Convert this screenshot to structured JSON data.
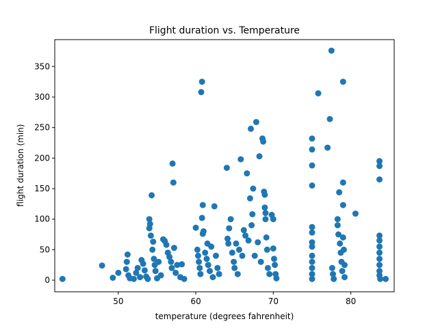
{
  "chart_data": {
    "type": "scatter",
    "title": "Flight duration vs. Temperature",
    "xlabel": "temperature (degrees fahrenheit)",
    "ylabel": "flight duration (min)",
    "xlim": [
      41.8,
      85.6
    ],
    "ylim": [
      -19,
      394
    ],
    "xticks": [
      50,
      60,
      70,
      80
    ],
    "yticks": [
      0,
      50,
      100,
      150,
      200,
      250,
      300,
      350
    ],
    "grid": false,
    "marker_color": "#1f77b4",
    "points": [
      [
        42.8,
        2
      ],
      [
        47.9,
        24
      ],
      [
        49.3,
        4
      ],
      [
        50.0,
        12
      ],
      [
        51.2,
        42
      ],
      [
        51.1,
        30
      ],
      [
        51.0,
        18
      ],
      [
        51.3,
        8
      ],
      [
        51.5,
        3
      ],
      [
        52.0,
        2
      ],
      [
        52.3,
        12
      ],
      [
        52.5,
        20
      ],
      [
        52.8,
        5
      ],
      [
        53.0,
        33
      ],
      [
        53.2,
        27
      ],
      [
        53.4,
        16
      ],
      [
        53.6,
        6
      ],
      [
        53.8,
        2
      ],
      [
        54.0,
        100
      ],
      [
        54.1,
        92
      ],
      [
        54.0,
        85
      ],
      [
        54.2,
        73
      ],
      [
        54.3,
        139
      ],
      [
        54.4,
        50
      ],
      [
        54.5,
        63
      ],
      [
        54.6,
        35
      ],
      [
        54.7,
        25
      ],
      [
        54.8,
        15
      ],
      [
        55.0,
        3
      ],
      [
        55.2,
        30
      ],
      [
        55.5,
        8
      ],
      [
        55.8,
        67
      ],
      [
        56.0,
        64
      ],
      [
        56.2,
        58
      ],
      [
        56.4,
        45
      ],
      [
        56.6,
        38
      ],
      [
        56.8,
        30
      ],
      [
        56.9,
        20
      ],
      [
        57.0,
        191
      ],
      [
        57.1,
        160
      ],
      [
        57.2,
        53
      ],
      [
        57.4,
        12
      ],
      [
        57.6,
        25
      ],
      [
        58.0,
        5
      ],
      [
        58.2,
        26
      ],
      [
        58.5,
        2
      ],
      [
        60.0,
        86
      ],
      [
        60.2,
        50
      ],
      [
        60.3,
        40
      ],
      [
        60.4,
        30
      ],
      [
        60.5,
        20
      ],
      [
        60.6,
        10
      ],
      [
        60.7,
        308
      ],
      [
        60.8,
        325
      ],
      [
        60.9,
        123
      ],
      [
        60.8,
        102
      ],
      [
        60.9,
        76
      ],
      [
        61.0,
        80
      ],
      [
        61.2,
        45
      ],
      [
        61.4,
        35
      ],
      [
        61.5,
        60
      ],
      [
        61.6,
        25
      ],
      [
        61.8,
        15
      ],
      [
        62.0,
        55
      ],
      [
        62.2,
        5
      ],
      [
        62.4,
        121
      ],
      [
        62.6,
        40
      ],
      [
        62.8,
        20
      ],
      [
        63.0,
        10
      ],
      [
        64.0,
        184
      ],
      [
        64.1,
        68
      ],
      [
        64.2,
        60
      ],
      [
        64.3,
        85
      ],
      [
        64.5,
        100
      ],
      [
        64.7,
        45
      ],
      [
        64.9,
        30
      ],
      [
        65.0,
        20
      ],
      [
        65.2,
        60
      ],
      [
        65.4,
        10
      ],
      [
        65.6,
        50
      ],
      [
        65.8,
        198
      ],
      [
        66.0,
        40
      ],
      [
        66.2,
        82
      ],
      [
        66.4,
        73
      ],
      [
        66.6,
        175
      ],
      [
        66.8,
        65
      ],
      [
        67.0,
        134
      ],
      [
        67.1,
        248
      ],
      [
        67.2,
        90
      ],
      [
        67.3,
        108
      ],
      [
        67.4,
        150
      ],
      [
        67.6,
        40
      ],
      [
        67.8,
        259
      ],
      [
        68.0,
        62
      ],
      [
        68.2,
        203
      ],
      [
        68.4,
        30
      ],
      [
        68.6,
        232
      ],
      [
        68.7,
        227
      ],
      [
        68.8,
        145
      ],
      [
        68.9,
        140
      ],
      [
        68.9,
        119
      ],
      [
        69.0,
        110
      ],
      [
        69.0,
        100
      ],
      [
        69.1,
        70
      ],
      [
        69.2,
        50
      ],
      [
        69.3,
        20
      ],
      [
        69.5,
        10
      ],
      [
        69.8,
        107
      ],
      [
        70.0,
        100
      ],
      [
        70.0,
        52
      ],
      [
        70.1,
        35
      ],
      [
        70.2,
        25
      ],
      [
        70.3,
        10
      ],
      [
        70.4,
        3
      ],
      [
        75.0,
        232
      ],
      [
        75.0,
        214
      ],
      [
        75.0,
        188
      ],
      [
        75.0,
        155
      ],
      [
        75.0,
        87
      ],
      [
        75.0,
        78
      ],
      [
        75.0,
        62
      ],
      [
        75.0,
        55
      ],
      [
        75.0,
        40
      ],
      [
        75.0,
        30
      ],
      [
        75.0,
        20
      ],
      [
        75.0,
        10
      ],
      [
        75.0,
        2
      ],
      [
        75.8,
        306
      ],
      [
        77.0,
        217
      ],
      [
        77.3,
        264
      ],
      [
        77.5,
        376
      ],
      [
        77.6,
        20
      ],
      [
        77.7,
        10
      ],
      [
        77.8,
        2
      ],
      [
        78.3,
        100
      ],
      [
        78.3,
        90
      ],
      [
        78.4,
        75
      ],
      [
        78.5,
        144
      ],
      [
        78.6,
        60
      ],
      [
        78.7,
        45
      ],
      [
        78.8,
        30
      ],
      [
        78.9,
        15
      ],
      [
        79.0,
        325
      ],
      [
        79.0,
        160
      ],
      [
        79.0,
        123
      ],
      [
        79.0,
        70
      ],
      [
        79.1,
        50
      ],
      [
        79.2,
        25
      ],
      [
        79.2,
        5
      ],
      [
        80.6,
        109
      ],
      [
        83.7,
        195
      ],
      [
        83.7,
        187
      ],
      [
        83.7,
        165
      ],
      [
        83.7,
        73
      ],
      [
        83.7,
        65
      ],
      [
        83.7,
        55
      ],
      [
        83.7,
        45
      ],
      [
        83.7,
        35
      ],
      [
        83.7,
        25
      ],
      [
        83.7,
        15
      ],
      [
        83.7,
        8
      ],
      [
        83.8,
        2
      ],
      [
        84.5,
        2
      ]
    ]
  }
}
